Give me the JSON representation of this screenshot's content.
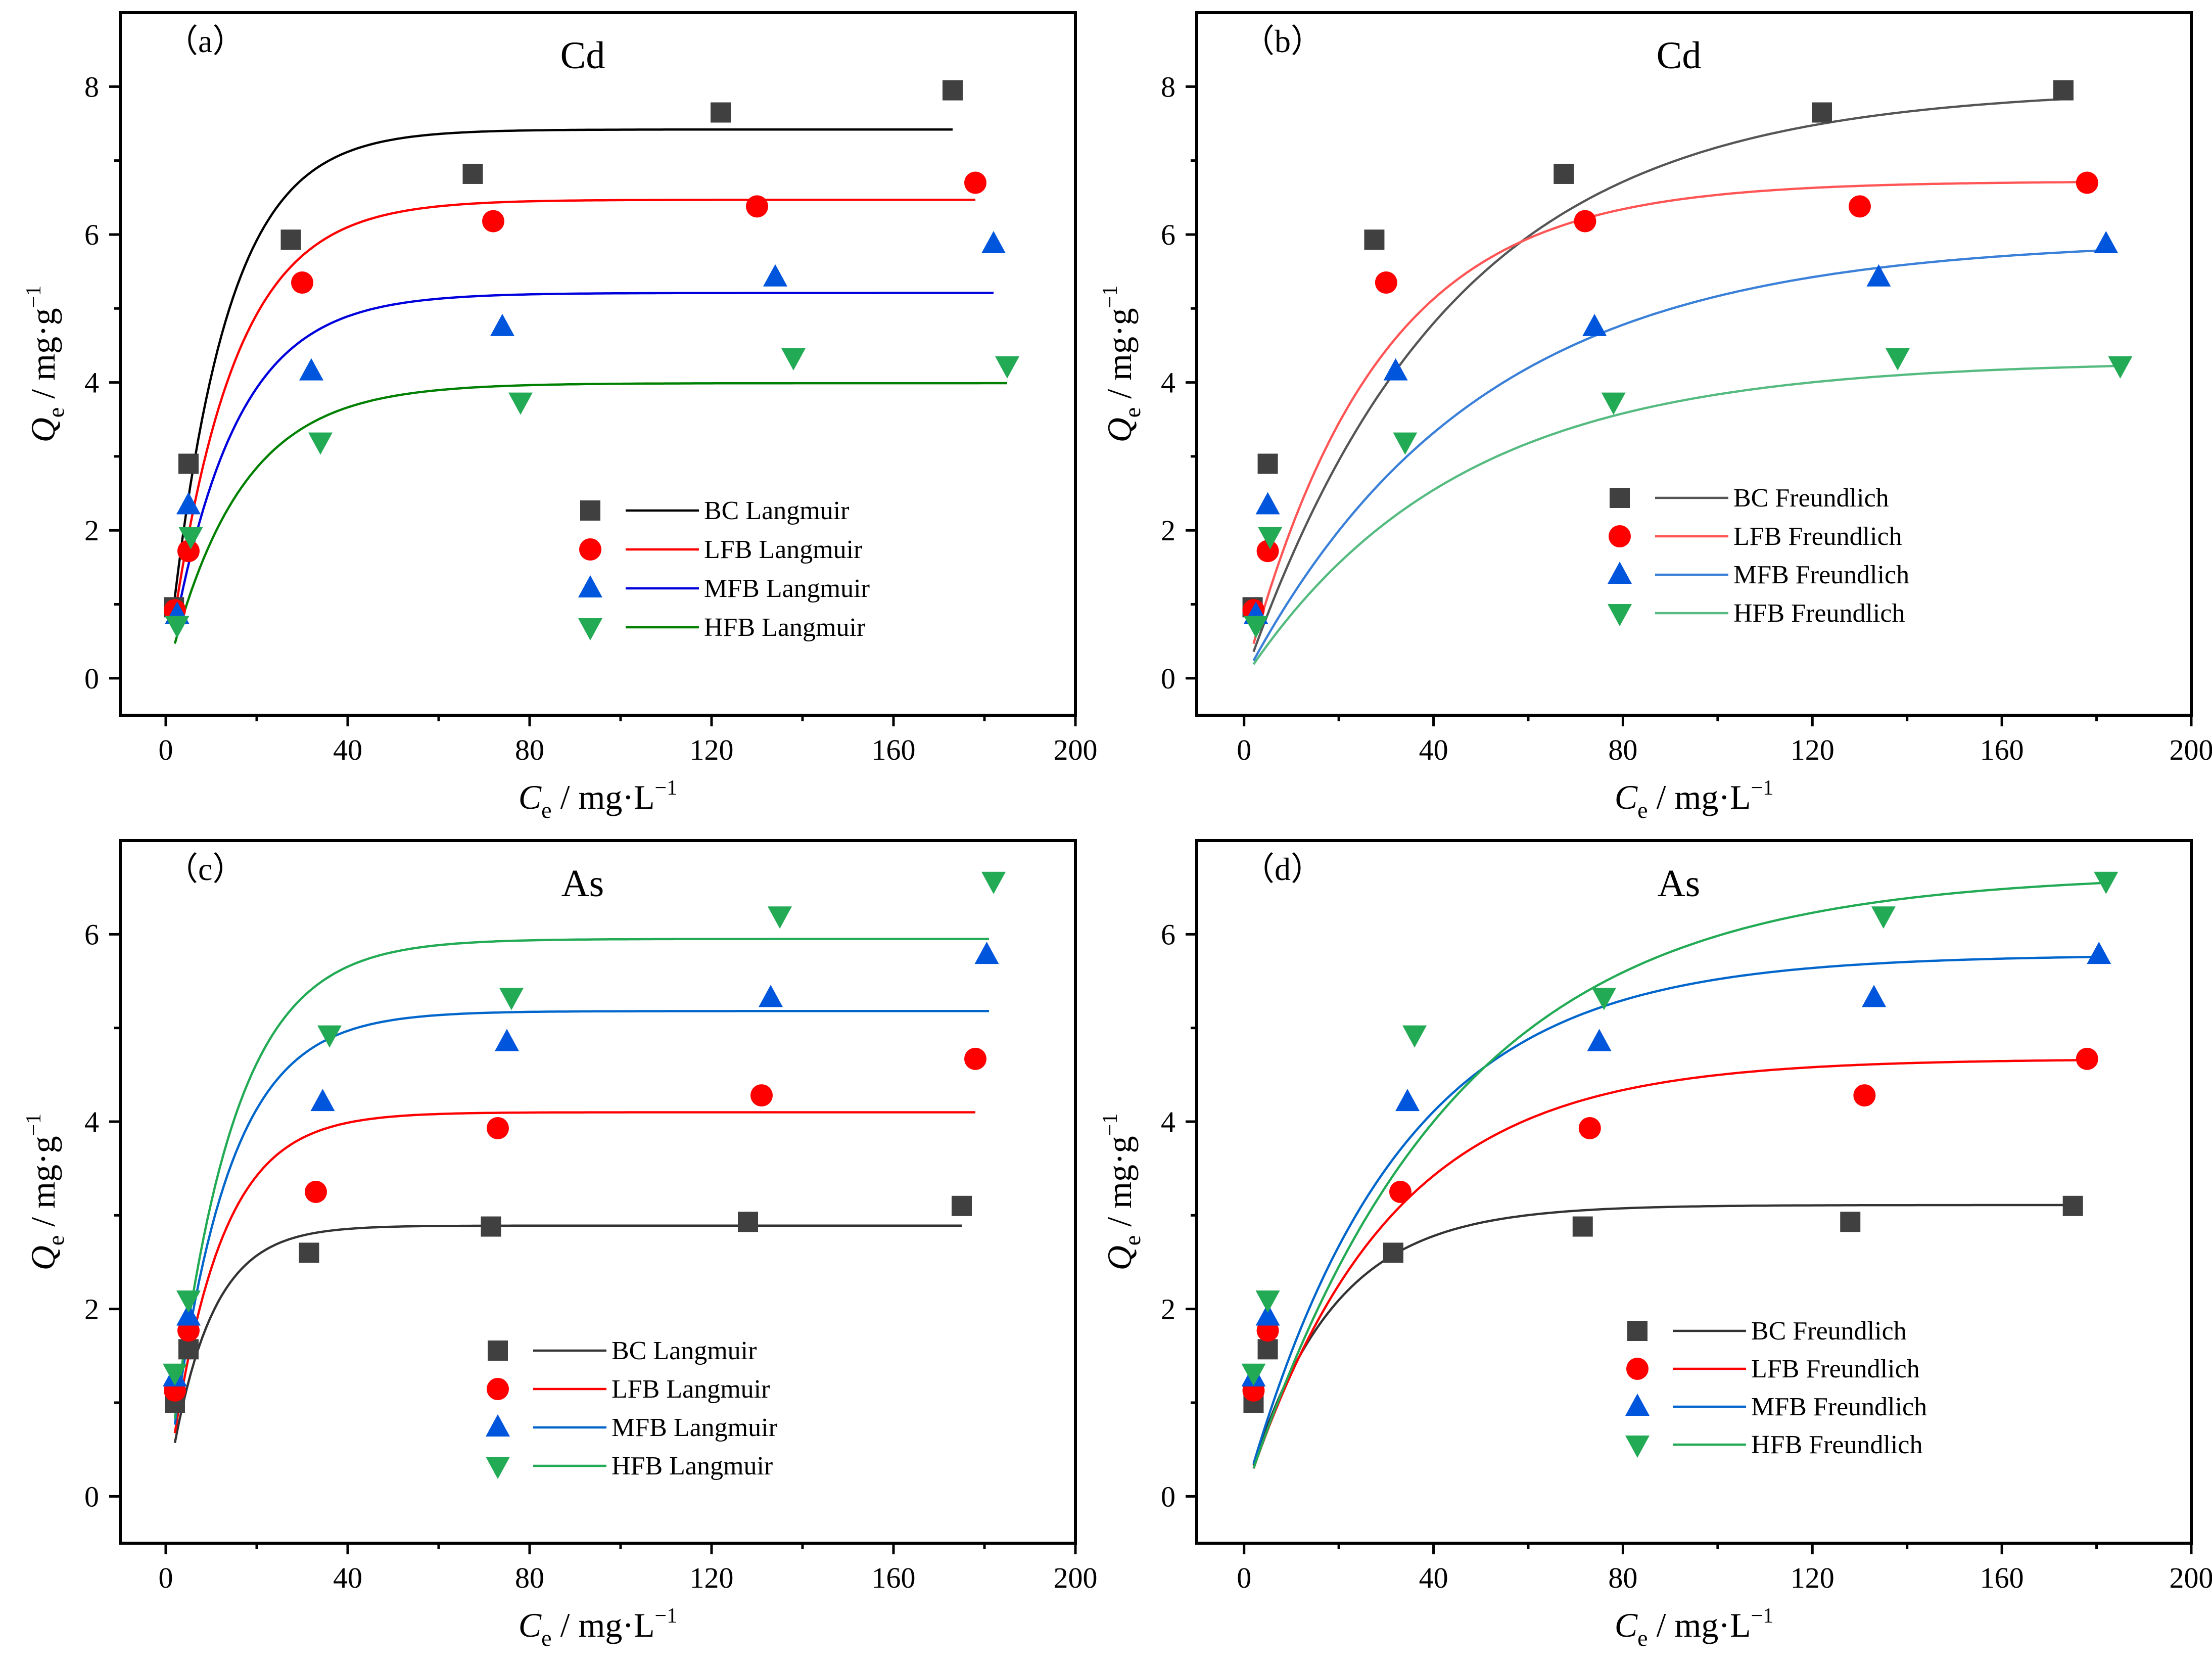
{
  "chart_data": [
    {
      "type": "scatter",
      "panel_label": "（a）",
      "title": "Cd",
      "xlabel": {
        "symbol": "C",
        "sub": "e",
        "unit": " / mg·L",
        "exp": "−1"
      },
      "ylabel": {
        "symbol": "Q",
        "sub": "e",
        "unit": " / mg·g",
        "exp": "−1"
      },
      "xlim": [
        -10,
        200
      ],
      "ylim": [
        -0.5,
        9
      ],
      "xticks": [
        0,
        40,
        80,
        120,
        160,
        200
      ],
      "yticks": [
        0,
        2,
        4,
        6,
        8
      ],
      "legend_position": "center-right",
      "series": [
        {
          "name": "BC Langmuir",
          "color": "#404040",
          "marker": "square",
          "fit_color": "#000000",
          "points": [
            [
              1.8,
              0.96
            ],
            [
              5,
              2.9
            ],
            [
              27.5,
              5.93
            ],
            [
              67.5,
              6.82
            ],
            [
              122,
              7.65
            ],
            [
              173,
              7.95
            ]
          ],
          "fit": {
            "model": "langmuir",
            "qmax": 7.42,
            "k": 0.08,
            "x_start": 2,
            "x_end": 173
          }
        },
        {
          "name": "LFB Langmuir",
          "color": "#ff0000",
          "marker": "circle",
          "fit_color": "#ff0000",
          "points": [
            [
              2,
              0.92
            ],
            [
              5,
              1.72
            ],
            [
              30,
              5.35
            ],
            [
              72,
              6.18
            ],
            [
              130,
              6.38
            ],
            [
              178,
              6.7
            ]
          ],
          "fit": {
            "model": "langmuir",
            "qmax": 6.47,
            "k": 0.0715,
            "x_start": 2,
            "x_end": 178
          }
        },
        {
          "name": "MFB Langmuir",
          "color": "#0055dd",
          "marker": "triangle-up",
          "fit_color": "#0000dd",
          "points": [
            [
              2.5,
              0.86
            ],
            [
              5,
              2.34
            ],
            [
              32,
              4.15
            ],
            [
              74,
              4.75
            ],
            [
              134,
              5.42
            ],
            [
              182,
              5.87
            ]
          ],
          "fit": {
            "model": "langmuir",
            "qmax": 5.21,
            "k": 0.07,
            "x_start": 2,
            "x_end": 182
          }
        },
        {
          "name": "HFB Langmuir",
          "color": "#22aa55",
          "marker": "triangle-down",
          "fit_color": "#008000",
          "points": [
            [
              2.5,
              0.72
            ],
            [
              5.5,
              1.92
            ],
            [
              34,
              3.2
            ],
            [
              78,
              3.74
            ],
            [
              138,
              4.34
            ],
            [
              185,
              4.23
            ]
          ],
          "fit": {
            "model": "langmuir",
            "qmax": 3.99,
            "k": 0.0625,
            "x_start": 2,
            "x_end": 185
          }
        }
      ]
    },
    {
      "type": "scatter",
      "panel_label": "（b）",
      "title": "Cd",
      "xlabel": {
        "symbol": "C",
        "sub": "e",
        "unit": " / mg·L",
        "exp": "−1"
      },
      "ylabel": {
        "symbol": "Q",
        "sub": "e",
        "unit": " / mg·g",
        "exp": "−1"
      },
      "xlim": [
        -10,
        200
      ],
      "ylim": [
        -0.5,
        9
      ],
      "xticks": [
        0,
        40,
        80,
        120,
        160,
        200
      ],
      "yticks": [
        0,
        2,
        4,
        6,
        8
      ],
      "legend_position": "center-right",
      "series": [
        {
          "name": "BC Freundlich",
          "color": "#404040",
          "marker": "square",
          "fit_color": "#555555",
          "points": [
            [
              1.8,
              0.96
            ],
            [
              5,
              2.9
            ],
            [
              27.5,
              5.93
            ],
            [
              67.5,
              6.82
            ],
            [
              122,
              7.65
            ],
            [
              173,
              7.95
            ]
          ],
          "fit": {
            "model": "freundlich",
            "qmax": 7.98,
            "k": 0.023,
            "x_start": 2,
            "x_end": 173
          }
        },
        {
          "name": "LFB Freundlich",
          "color": "#ff0000",
          "marker": "circle",
          "fit_color": "#ff5555",
          "points": [
            [
              2,
              0.92
            ],
            [
              5,
              1.72
            ],
            [
              30,
              5.35
            ],
            [
              72,
              6.18
            ],
            [
              130,
              6.38
            ],
            [
              178,
              6.7
            ]
          ],
          "fit": {
            "model": "freundlich",
            "qmax": 6.72,
            "k": 0.036,
            "x_start": 2,
            "x_end": 178
          }
        },
        {
          "name": "MFB Freundlich",
          "color": "#0055dd",
          "marker": "triangle-up",
          "fit_color": "#3a80d8",
          "points": [
            [
              2.5,
              0.86
            ],
            [
              5,
              2.34
            ],
            [
              32,
              4.15
            ],
            [
              74,
              4.75
            ],
            [
              134,
              5.42
            ],
            [
              182,
              5.87
            ]
          ],
          "fit": {
            "model": "freundlich",
            "qmax": 5.93,
            "k": 0.0205,
            "x_start": 2,
            "x_end": 182
          }
        },
        {
          "name": "HFB Freundlich",
          "color": "#22aa55",
          "marker": "triangle-down",
          "fit_color": "#55bb80",
          "points": [
            [
              2.5,
              0.72
            ],
            [
              5.5,
              1.92
            ],
            [
              34,
              3.2
            ],
            [
              78,
              3.74
            ],
            [
              138,
              4.34
            ],
            [
              185,
              4.23
            ]
          ],
          "fit": {
            "model": "freundlich",
            "qmax": 4.29,
            "k": 0.0225,
            "x_start": 2,
            "x_end": 185
          }
        }
      ]
    },
    {
      "type": "scatter",
      "panel_label": "（c）",
      "title": "As",
      "xlabel": {
        "symbol": "C",
        "sub": "e",
        "unit": " / mg·L",
        "exp": "−1"
      },
      "ylabel": {
        "symbol": "Q",
        "sub": "e",
        "unit": " / mg·g",
        "exp": "−1"
      },
      "xlim": [
        -10,
        200
      ],
      "ylim": [
        -0.5,
        7
      ],
      "xticks": [
        0,
        40,
        80,
        120,
        160,
        200
      ],
      "yticks": [
        0,
        2,
        4,
        6
      ],
      "legend_position": "lower-right",
      "series": [
        {
          "name": "BC Langmuir",
          "color": "#404040",
          "marker": "square",
          "fit_color": "#333333",
          "points": [
            [
              2,
              1.0
            ],
            [
              5,
              1.57
            ],
            [
              31.5,
              2.6
            ],
            [
              71.5,
              2.88
            ],
            [
              128,
              2.93
            ],
            [
              175,
              3.1
            ]
          ],
          "fit": {
            "model": "langmuir",
            "qmax": 2.89,
            "k": 0.11,
            "x_start": 2,
            "x_end": 175
          }
        },
        {
          "name": "LFB Langmuir",
          "color": "#ff0000",
          "marker": "circle",
          "fit_color": "#ff0000",
          "points": [
            [
              2,
              1.13
            ],
            [
              5,
              1.77
            ],
            [
              33,
              3.25
            ],
            [
              73,
              3.93
            ],
            [
              131,
              4.28
            ],
            [
              178,
              4.67
            ]
          ],
          "fit": {
            "model": "langmuir",
            "qmax": 4.1,
            "k": 0.09,
            "x_start": 2,
            "x_end": 178
          }
        },
        {
          "name": "MFB Langmuir",
          "color": "#0055dd",
          "marker": "triangle-up",
          "fit_color": "#0066cc",
          "points": [
            [
              2,
              1.27
            ],
            [
              5,
              1.92
            ],
            [
              34.5,
              4.21
            ],
            [
              75,
              4.85
            ],
            [
              133,
              5.32
            ],
            [
              180.5,
              5.78
            ]
          ],
          "fit": {
            "model": "langmuir",
            "qmax": 5.18,
            "k": 0.08,
            "x_start": 2,
            "x_end": 181
          }
        },
        {
          "name": "HFB Langmuir",
          "color": "#22aa55",
          "marker": "triangle-down",
          "fit_color": "#22aa55",
          "points": [
            [
              2,
              1.32
            ],
            [
              5,
              2.1
            ],
            [
              36,
              4.93
            ],
            [
              76,
              5.33
            ],
            [
              135,
              6.2
            ],
            [
              182,
              6.57
            ]
          ],
          "fit": {
            "model": "langmuir",
            "qmax": 5.95,
            "k": 0.075,
            "x_start": 2,
            "x_end": 181
          }
        }
      ]
    },
    {
      "type": "scatter",
      "panel_label": "（d）",
      "title": "As",
      "xlabel": {
        "symbol": "C",
        "sub": "e",
        "unit": " / mg·L",
        "exp": "−1"
      },
      "ylabel": {
        "symbol": "Q",
        "sub": "e",
        "unit": " / mg·g",
        "exp": "−1"
      },
      "xlim": [
        -10,
        200
      ],
      "ylim": [
        -0.5,
        7
      ],
      "xticks": [
        0,
        40,
        80,
        120,
        160,
        200
      ],
      "yticks": [
        0,
        2,
        4,
        6
      ],
      "legend_position": "lower-right",
      "series": [
        {
          "name": "BC Freundlich",
          "color": "#404040",
          "marker": "square",
          "fit_color": "#333333",
          "points": [
            [
              2,
              1.0
            ],
            [
              5,
              1.57
            ],
            [
              31.5,
              2.6
            ],
            [
              71.5,
              2.88
            ],
            [
              128,
              2.93
            ],
            [
              175,
              3.1
            ]
          ],
          "fit": {
            "model": "freundlich",
            "qmax": 3.11,
            "k": 0.056,
            "x_start": 2,
            "x_end": 175
          }
        },
        {
          "name": "LFB Freundlich",
          "color": "#ff0000",
          "marker": "circle",
          "fit_color": "#ff0000",
          "points": [
            [
              2,
              1.13
            ],
            [
              5,
              1.77
            ],
            [
              33,
              3.25
            ],
            [
              73,
              3.93
            ],
            [
              131,
              4.28
            ],
            [
              178,
              4.67
            ]
          ],
          "fit": {
            "model": "freundlich",
            "qmax": 4.67,
            "k": 0.033,
            "x_start": 2,
            "x_end": 178
          }
        },
        {
          "name": "MFB Freundlich",
          "color": "#0055dd",
          "marker": "triangle-up",
          "fit_color": "#0066cc",
          "points": [
            [
              2,
              1.27
            ],
            [
              5,
              1.92
            ],
            [
              34.5,
              4.21
            ],
            [
              75,
              4.85
            ],
            [
              133,
              5.32
            ],
            [
              180.5,
              5.78
            ]
          ],
          "fit": {
            "model": "freundlich",
            "qmax": 5.78,
            "k": 0.031,
            "x_start": 2,
            "x_end": 181
          }
        },
        {
          "name": "HFB Freundlich",
          "color": "#22aa55",
          "marker": "triangle-down",
          "fit_color": "#22aa55",
          "points": [
            [
              2,
              1.32
            ],
            [
              5,
              2.1
            ],
            [
              36,
              4.93
            ],
            [
              76,
              5.33
            ],
            [
              135,
              6.2
            ],
            [
              182,
              6.57
            ]
          ],
          "fit": {
            "model": "freundlich",
            "qmax": 6.65,
            "k": 0.023,
            "x_start": 2,
            "x_end": 182
          }
        }
      ]
    }
  ]
}
